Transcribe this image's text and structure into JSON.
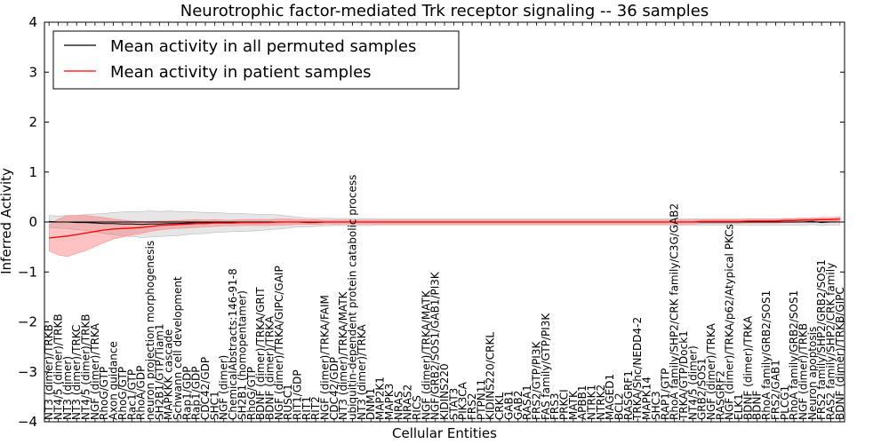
{
  "chart_data": {
    "type": "line",
    "title": "Neurotrophic factor-mediated Trk receptor signaling -- 36 samples",
    "xlabel": "Cellular Entities",
    "ylabel": "Inferred Activity",
    "ylim": [
      -4,
      4
    ],
    "yticks": [
      "−4",
      "−3",
      "−2",
      "−1",
      "0",
      "1",
      "2",
      "3",
      "4"
    ],
    "legend": {
      "position": "top-left",
      "entries": [
        {
          "label": "Mean activity in all permuted samples",
          "color": "#000000"
        },
        {
          "label": "Mean activity in patient samples",
          "color": "#ff0000"
        }
      ]
    },
    "categories": [
      "NT3 (dimer)/TRKB",
      "NT4/5 (dimer)/TRKB",
      "NT3 (dimer)",
      "NT3 (dimer)/TRKC",
      "NT4/5 (dimer)/TRKB",
      "NGF (dimer)/TRKA",
      "RhoG/GTP",
      "Axon guidance",
      "RhoG/GTP",
      "Rac1/GTP",
      "RhoA/GDP",
      "neuron projection morphogenesis",
      "SH2B1/GTP/Tiam1",
      "MAPKKK cascade",
      "Schwann cell development",
      "Rap1/GDP",
      "Rap1/GDP",
      "CDC42/GDP",
      "SHC1",
      "NGF (dimer)",
      "ChemicalAbstracts:146-91-8",
      "SH2B1 (homopentamer)",
      "RhoG/GTP",
      "BDNF (dimer)/TRKA/GRIT",
      "BDNF (dimer)/TRKA",
      "NGF (dimer)/TRKA/GIPC/GAIP",
      "RUSC1",
      "RIT1/GDP",
      "RIT1",
      "RIT2",
      "NGF (dimer)/TRKA/FAIM",
      "CDC42/GDP",
      "NT3 (dimer)/TRKA/MATK",
      "ubiquitin-dependent protein catabolic process",
      "NT3 (dimer)/TRKA",
      "DNM1",
      "MAP2K1",
      "MAPK3",
      "NRAS",
      "NRAS2",
      "RICS",
      "NGF (dimer)/TRKA/MATK",
      "NGF/GRB2/SOS1/GAB1/PI3K",
      "KIDINS220",
      "STAT3",
      "PIK3CA",
      "FRS2",
      "PTPN11",
      "KIDINS220/CRKL",
      "CRKL",
      "GAB1",
      "GAB2",
      "RASA1",
      "FRS2/GTP/PI3K",
      "FAS family/GTP/PI3K",
      "FRS3",
      "PRKCI",
      "MATK",
      "APBB1",
      "NTRK1",
      "NTRK2",
      "MAGED1",
      "BCL2",
      "RASGRF1",
      "TRKA/Shc/NEDD4-2",
      "MAPK14",
      "SHC3",
      "RAP1/GTP",
      "RhoA family/SHP2/CRK family/C3G/GAB2",
      "TRKA/GTP/Dock1",
      "NT4/5 (dimer)",
      "GRB2/SOS1",
      "NGF (dimer)/TRKA",
      "RASGRF2",
      "NGF (dimer)/TRKA/p62/Atypical PKCs",
      "ELK1",
      "BDNF (dimer)/TRKA",
      "BDNF",
      "RhoA family/GRB2/SOS1",
      "FRS2/GAB1",
      "PLCG1",
      "RhoA family/GRB2/SOS1",
      "NGF (dimer)/TRKB",
      "Neuron apoptosis",
      "FRS2 family/SHP2/GRB2/SOS1",
      "RAS2 family/SHP2/CRK family",
      "BDNF (dimer)/TRKB/GIPC"
    ],
    "series": [
      {
        "name": "Mean activity in all permuted samples",
        "color": "#000000",
        "values": [
          0.01,
          0.0,
          0.0,
          -0.01,
          -0.01,
          -0.02,
          -0.03,
          -0.03,
          -0.04,
          -0.04,
          -0.05,
          -0.04,
          -0.04,
          -0.03,
          -0.03,
          -0.02,
          -0.02,
          -0.02,
          -0.01,
          -0.01,
          -0.01,
          -0.01,
          -0.01,
          -0.01,
          0.0,
          0.0,
          0.0,
          0.0,
          -0.01,
          -0.01,
          0.0,
          0.0,
          0.0,
          0.0,
          0.0,
          0.0,
          0.0,
          0.0,
          0.0,
          0.0,
          0.0,
          0.0,
          0.0,
          0.0,
          0.0,
          0.0,
          0.0,
          0.0,
          0.0,
          0.0,
          0.0,
          0.0,
          0.0,
          0.0,
          0.0,
          0.0,
          0.0,
          0.0,
          0.0,
          0.0,
          0.0,
          0.0,
          0.0,
          0.0,
          0.0,
          0.0,
          0.0,
          0.0,
          0.0,
          0.0,
          0.0,
          0.0,
          0.0,
          0.0,
          0.0,
          0.0,
          0.0,
          0.0,
          0.0,
          0.0,
          0.0,
          0.0,
          0.0,
          0.01,
          -0.01,
          0.0,
          0.0
        ],
        "band": [
          0.12,
          0.12,
          0.13,
          0.14,
          0.16,
          0.18,
          0.2,
          0.22,
          0.24,
          0.25,
          0.26,
          0.26,
          0.25,
          0.25,
          0.24,
          0.23,
          0.22,
          0.21,
          0.2,
          0.19,
          0.18,
          0.18,
          0.17,
          0.16,
          0.15,
          0.14,
          0.12,
          0.1,
          0.09,
          0.08,
          0.08,
          0.07,
          0.07,
          0.07,
          0.07,
          0.07,
          0.06,
          0.06,
          0.06,
          0.06,
          0.06,
          0.06,
          0.06,
          0.06,
          0.06,
          0.06,
          0.06,
          0.06,
          0.06,
          0.06,
          0.06,
          0.06,
          0.06,
          0.06,
          0.06,
          0.06,
          0.06,
          0.06,
          0.06,
          0.06,
          0.06,
          0.06,
          0.06,
          0.06,
          0.06,
          0.06,
          0.06,
          0.06,
          0.06,
          0.06,
          0.06,
          0.06,
          0.06,
          0.06,
          0.06,
          0.06,
          0.06,
          0.06,
          0.06,
          0.06,
          0.06,
          0.06,
          0.06,
          0.06,
          0.06,
          0.06,
          0.06
        ]
      },
      {
        "name": "Mean activity in patient samples",
        "color": "#ff0000",
        "values": [
          -0.32,
          -0.3,
          -0.28,
          -0.25,
          -0.22,
          -0.19,
          -0.16,
          -0.14,
          -0.13,
          -0.12,
          -0.11,
          -0.09,
          -0.07,
          -0.06,
          -0.05,
          -0.04,
          -0.03,
          -0.03,
          -0.02,
          -0.02,
          -0.02,
          -0.01,
          -0.01,
          -0.01,
          -0.01,
          0.0,
          0.0,
          0.0,
          0.0,
          0.0,
          0.0,
          0.0,
          0.0,
          0.0,
          0.0,
          0.0,
          0.0,
          0.0,
          0.0,
          0.0,
          0.0,
          0.0,
          0.0,
          0.0,
          0.0,
          0.0,
          0.0,
          0.0,
          0.0,
          0.0,
          0.0,
          0.0,
          0.0,
          0.0,
          0.0,
          0.0,
          0.0,
          0.0,
          0.0,
          0.0,
          0.0,
          0.0,
          0.0,
          0.0,
          0.0,
          0.0,
          0.0,
          0.0,
          0.0,
          0.0,
          0.0,
          0.01,
          0.01,
          0.01,
          0.01,
          0.01,
          0.02,
          0.02,
          0.02,
          0.02,
          0.03,
          0.03,
          0.04,
          0.04,
          0.05,
          0.05,
          0.06
        ],
        "band": [
          0.26,
          0.36,
          0.41,
          0.38,
          0.35,
          0.3,
          0.25,
          0.2,
          0.17,
          0.14,
          0.12,
          0.1,
          0.09,
          0.08,
          0.08,
          0.08,
          0.08,
          0.07,
          0.07,
          0.06,
          0.06,
          0.06,
          0.06,
          0.06,
          0.06,
          0.06,
          0.06,
          0.05,
          0.05,
          0.05,
          0.04,
          0.04,
          0.04,
          0.04,
          0.04,
          0.04,
          0.04,
          0.04,
          0.04,
          0.04,
          0.04,
          0.04,
          0.04,
          0.04,
          0.04,
          0.04,
          0.04,
          0.04,
          0.04,
          0.04,
          0.04,
          0.04,
          0.04,
          0.04,
          0.04,
          0.04,
          0.04,
          0.04,
          0.04,
          0.04,
          0.04,
          0.04,
          0.04,
          0.04,
          0.04,
          0.04,
          0.04,
          0.04,
          0.04,
          0.04,
          0.04,
          0.04,
          0.04,
          0.04,
          0.04,
          0.04,
          0.04,
          0.04,
          0.04,
          0.04,
          0.04,
          0.04,
          0.04,
          0.04,
          0.04,
          0.04,
          0.04
        ]
      }
    ]
  }
}
